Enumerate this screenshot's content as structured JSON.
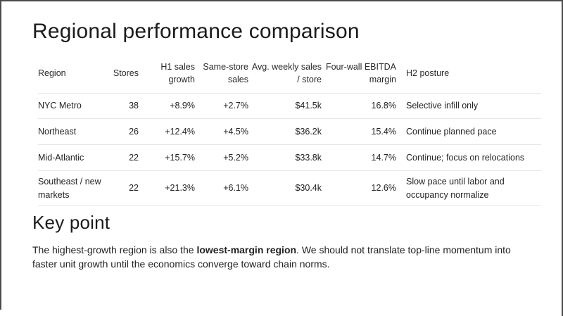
{
  "slide": {
    "title": "Regional performance comparison",
    "table": {
      "columns": [
        {
          "label": "Region",
          "align": "left"
        },
        {
          "label": "Stores",
          "align": "right"
        },
        {
          "label": "H1 sales\ngrowth",
          "align": "right"
        },
        {
          "label": "Same-store\nsales",
          "align": "right"
        },
        {
          "label": "Avg. weekly sales\n/ store",
          "align": "right"
        },
        {
          "label": "Four-wall EBITDA\nmargin",
          "align": "right"
        },
        {
          "label": "H2 posture",
          "align": "left"
        }
      ],
      "rows": [
        [
          "NYC Metro",
          "38",
          "+8.9%",
          "+2.7%",
          "$41.5k",
          "16.8%",
          "Selective infill only"
        ],
        [
          "Northeast",
          "26",
          "+12.4%",
          "+4.5%",
          "$36.2k",
          "15.4%",
          "Continue planned pace"
        ],
        [
          "Mid-Atlantic",
          "22",
          "+15.7%",
          "+5.2%",
          "$33.8k",
          "14.7%",
          "Continue; focus on relocations"
        ],
        [
          "Southeast / new markets",
          "22",
          "+21.3%",
          "+6.1%",
          "$30.4k",
          "12.6%",
          "Slow pace until labor and occupancy normalize"
        ]
      ]
    },
    "key_point": {
      "heading": "Key point",
      "body_prefix": "The highest-growth region is also the ",
      "body_bold": "lowest-margin region",
      "body_suffix": ". We should not translate top-line momentum into faster unit growth until the economics converge toward chain norms."
    },
    "colors": {
      "background": "#ffffff",
      "text": "#1d1d1f",
      "divider": "#e6e6e6",
      "frame": "#4b4b4b"
    }
  }
}
